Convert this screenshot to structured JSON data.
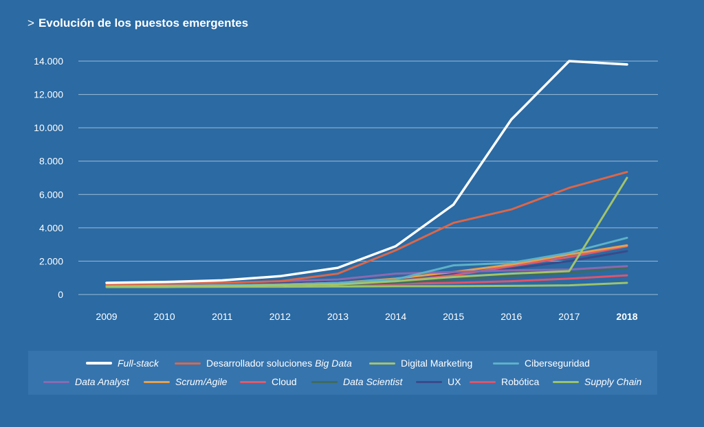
{
  "title": "Evolución de los puestos emergentes",
  "title_marker": ">",
  "chart_data": {
    "type": "line",
    "title": "Evolución de los puestos emergentes",
    "xlabel": "",
    "ylabel": "",
    "categories": [
      "2009",
      "2010",
      "2011",
      "2012",
      "2013",
      "2014",
      "2015",
      "2016",
      "2017",
      "2018"
    ],
    "highlight_category": "2018",
    "y_ticks": [
      "0",
      "2.000",
      "4.000",
      "6.000",
      "8.000",
      "10.000",
      "12.000",
      "14.000"
    ],
    "y_tick_values": [
      0,
      2000,
      4000,
      6000,
      8000,
      10000,
      12000,
      14000
    ],
    "ylim": [
      0,
      14000
    ],
    "grid": true,
    "legend_position": "bottom",
    "series": [
      {
        "name": "Full-stack",
        "italic": true,
        "color": "#ffffff",
        "values": [
          700,
          750,
          850,
          1100,
          1600,
          2900,
          5400,
          10500,
          14000,
          13800
        ]
      },
      {
        "name": "Desarrollador soluciones ",
        "name_italic": "Big Data",
        "color": "#dd6648",
        "values": [
          600,
          650,
          700,
          800,
          1250,
          2650,
          4300,
          5100,
          6400,
          7350
        ]
      },
      {
        "name": "Digital Marketing",
        "italic": false,
        "color": "#a3c46a",
        "values": [
          500,
          500,
          500,
          550,
          600,
          800,
          1050,
          1250,
          1400,
          7000
        ]
      },
      {
        "name": "Ciberseguridad",
        "italic": false,
        "color": "#5eb2c8",
        "values": [
          500,
          520,
          550,
          600,
          700,
          900,
          1750,
          1900,
          2500,
          3400
        ]
      },
      {
        "name": "Data Analyst",
        "italic": true,
        "color": "#8a6ab0",
        "values": [
          600,
          650,
          700,
          800,
          900,
          1250,
          1350,
          1450,
          1500,
          1700
        ]
      },
      {
        "name": "Scrum/Agile",
        "italic": true,
        "color": "#e8a04a",
        "values": [
          500,
          500,
          550,
          600,
          700,
          950,
          1350,
          1800,
          2400,
          2950
        ]
      },
      {
        "name": "Cloud",
        "italic": false,
        "color": "#e25a6a",
        "values": [
          500,
          520,
          560,
          600,
          700,
          800,
          1150,
          1700,
          2250,
          2900
        ]
      },
      {
        "name": "Data Scientist",
        "italic": true,
        "color": "#3f6b5f",
        "values": [
          500,
          500,
          520,
          550,
          600,
          700,
          900,
          1100,
          1300,
          1600
        ]
      },
      {
        "name": "UX",
        "italic": false,
        "color": "#3a4a8a",
        "values": [
          600,
          620,
          650,
          700,
          750,
          950,
          1250,
          1550,
          2000,
          2600
        ]
      },
      {
        "name": "Robótica",
        "italic": false,
        "color": "#e0546a",
        "values": [
          500,
          500,
          520,
          550,
          600,
          650,
          700,
          800,
          950,
          1150
        ]
      },
      {
        "name": "Supply Chain",
        "italic": true,
        "color": "#9bc46a",
        "values": [
          450,
          450,
          460,
          470,
          480,
          500,
          500,
          520,
          550,
          700
        ]
      }
    ]
  }
}
